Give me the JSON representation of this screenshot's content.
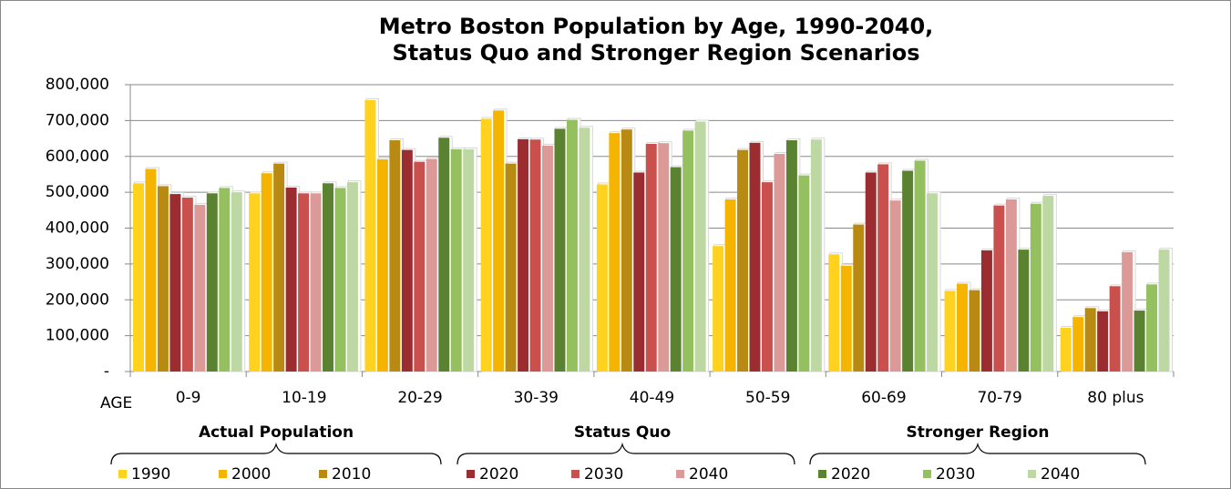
{
  "chart_data": {
    "type": "bar",
    "title": [
      "Metro Boston Population by Age, 1990-2040,",
      "Status Quo and Stronger Region Scenarios"
    ],
    "x_label": "AGE",
    "categories": [
      "0-9",
      "10-19",
      "20-29",
      "30-39",
      "40-49",
      "50-59",
      "60-69",
      "70-79",
      "80 plus"
    ],
    "legend_groups": [
      "Actual Population",
      "Status Quo",
      "Stronger Region"
    ],
    "series": [
      {
        "name": "1990",
        "color": "#FFD21F",
        "values": [
          525000,
          497000,
          757000,
          705000,
          522000,
          350000,
          327000,
          225000,
          122000
        ]
      },
      {
        "name": "2000",
        "color": "#F5B400",
        "values": [
          565000,
          553000,
          592000,
          728000,
          665000,
          480000,
          295000,
          245000,
          152000
        ]
      },
      {
        "name": "2010",
        "color": "#B88A12",
        "values": [
          517000,
          580000,
          645000,
          580000,
          675000,
          618000,
          410000,
          227000,
          177000
        ]
      },
      {
        "name": "2020",
        "color": "#9B2C2F",
        "values": [
          495000,
          513000,
          618000,
          648000,
          555000,
          638000,
          555000,
          338000,
          168000
        ]
      },
      {
        "name": "2030",
        "color": "#C9504D",
        "values": [
          485000,
          497000,
          585000,
          647000,
          635000,
          528000,
          578000,
          463000,
          238000
        ]
      },
      {
        "name": "2040",
        "color": "#DB9A98",
        "values": [
          465000,
          497000,
          593000,
          630000,
          637000,
          607000,
          477000,
          480000,
          333000
        ]
      },
      {
        "name": "2020",
        "color": "#5A8230",
        "values": [
          497000,
          525000,
          652000,
          677000,
          570000,
          645000,
          560000,
          340000,
          170000
        ]
      },
      {
        "name": "2030",
        "color": "#94C060",
        "values": [
          512000,
          512000,
          620000,
          702000,
          672000,
          547000,
          588000,
          468000,
          243000
        ]
      },
      {
        "name": "2040",
        "color": "#BDD8A3",
        "values": [
          500000,
          528000,
          620000,
          680000,
          697000,
          647000,
          497000,
          490000,
          340000
        ]
      }
    ],
    "ylim": [
      0,
      800000
    ],
    "yticks": [
      {
        "value": 0,
        "label": "-"
      },
      {
        "value": 100000,
        "label": "100,000"
      },
      {
        "value": 200000,
        "label": "200,000"
      },
      {
        "value": 300000,
        "label": "300,000"
      },
      {
        "value": 400000,
        "label": "400,000"
      },
      {
        "value": 500000,
        "label": "500,000"
      },
      {
        "value": 600000,
        "label": "600,000"
      },
      {
        "value": 700000,
        "label": "700,000"
      },
      {
        "value": 800000,
        "label": "800,000"
      }
    ],
    "grid": true
  }
}
